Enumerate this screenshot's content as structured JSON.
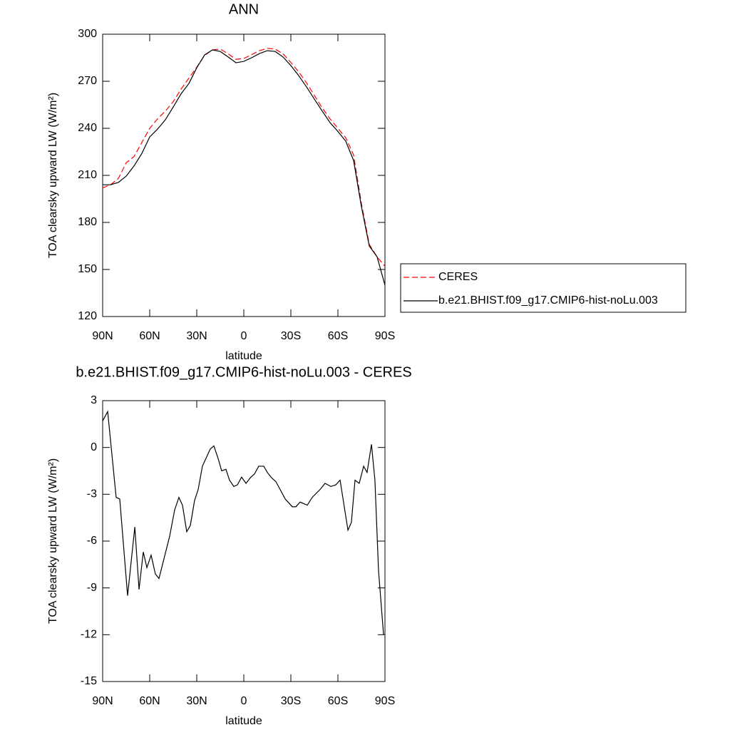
{
  "chart_data": [
    {
      "type": "line",
      "title": "ANN",
      "xlabel": "latitude",
      "ylabel": "TOA clearsky upward LW (W/m²)",
      "xlim": [
        90,
        -90
      ],
      "ylim": [
        120,
        300
      ],
      "xticks": [
        {
          "value": 90,
          "label": "90N"
        },
        {
          "value": 60,
          "label": "60N"
        },
        {
          "value": 30,
          "label": "30N"
        },
        0,
        {
          "value": -30,
          "label": "30S"
        },
        {
          "value": -60,
          "label": "60S"
        },
        {
          "value": -90,
          "label": "90S"
        }
      ],
      "yticks": [
        120,
        150,
        180,
        210,
        240,
        270,
        300
      ],
      "legend": "right",
      "x": [
        90,
        85,
        80,
        75,
        70,
        65,
        60,
        55,
        50,
        45,
        40,
        35,
        30,
        25,
        20,
        15,
        10,
        5,
        0,
        -5,
        -10,
        -15,
        -20,
        -25,
        -30,
        -35,
        -40,
        -45,
        -50,
        -55,
        -60,
        -65,
        -70,
        -75,
        -80,
        -85,
        -90
      ],
      "series": [
        {
          "name": "CERES",
          "color": "#ff0000",
          "style": "dashed",
          "values": [
            202,
            204,
            208,
            218,
            222,
            231,
            240,
            246,
            251,
            257,
            265,
            272,
            279,
            286.5,
            290,
            290.5,
            287.5,
            284,
            284.5,
            287,
            289.5,
            291,
            290.5,
            287.5,
            282,
            276,
            269,
            261,
            253,
            246,
            240,
            234,
            223,
            192,
            166,
            158,
            152
          ]
        },
        {
          "name": "b.e21.BHIST.f09_g17.CMIP6-hist-noLu.003",
          "color": "#000000",
          "style": "solid",
          "values": [
            204,
            204,
            205.5,
            209.5,
            216,
            224,
            234.5,
            239.5,
            245.5,
            253.6,
            262,
            268.6,
            278.6,
            286.8,
            290,
            289,
            285.5,
            281.8,
            282.7,
            285,
            287.7,
            289.5,
            289,
            285.5,
            280,
            273.6,
            266.4,
            258.6,
            251,
            243.6,
            238,
            231.8,
            219.5,
            190,
            165,
            158,
            140
          ]
        }
      ]
    },
    {
      "type": "line",
      "title": "b.e21.BHIST.f09_g17.CMIP6-hist-noLu.003 - CERES",
      "xlabel": "latitude",
      "ylabel": "TOA clearsky upward LW (W/m²)",
      "xlim": [
        90,
        -90
      ],
      "ylim": [
        -15,
        3
      ],
      "xticks": [
        {
          "value": 90,
          "label": "90N"
        },
        {
          "value": 60,
          "label": "60N"
        },
        {
          "value": 30,
          "label": "30N"
        },
        0,
        {
          "value": -30,
          "label": "30S"
        },
        {
          "value": -60,
          "label": "60S"
        },
        {
          "value": -90,
          "label": "90S"
        }
      ],
      "yticks": [
        -15,
        -12,
        -9,
        -6,
        -3,
        0,
        3
      ],
      "x": [
        90,
        86.8,
        81.4,
        79.1,
        74.1,
        69.5,
        66.8,
        64.1,
        61.8,
        59.1,
        56.4,
        54.1,
        47.3,
        44.1,
        41.4,
        39.1,
        36.4,
        34.1,
        31.4,
        29.1,
        26.4,
        21.4,
        19.1,
        16.4,
        14.1,
        11.4,
        9.1,
        6.4,
        4.1,
        1.4,
        -1.4,
        -4.5,
        -6.8,
        -9.5,
        -12.7,
        -15,
        -17.3,
        -20.5,
        -23.2,
        -26.4,
        -30.9,
        -33.2,
        -35.9,
        -40.5,
        -43.6,
        -48.6,
        -51.8,
        -55.5,
        -58.6,
        -61.4,
        -66.4,
        -68.6,
        -70.9,
        -73.6,
        -76.4,
        -78.6,
        -81.4,
        -83.6,
        -85.9,
        -89.1
      ],
      "series": [
        {
          "color": "#000000",
          "style": "solid",
          "values": [
            1.7,
            2.3,
            -3.2,
            -3.3,
            -9.5,
            -5.1,
            -9.1,
            -6.7,
            -7.7,
            -6.9,
            -8.1,
            -8.4,
            -5.7,
            -4.0,
            -3.2,
            -3.7,
            -5.4,
            -5.0,
            -3.4,
            -2.7,
            -1.2,
            -0.1,
            0.1,
            -0.7,
            -1.5,
            -1.4,
            -2.1,
            -2.5,
            -2.4,
            -1.9,
            -2.3,
            -1.9,
            -1.7,
            -1.2,
            -1.2,
            -1.6,
            -1.9,
            -2.2,
            -2.7,
            -3.3,
            -3.8,
            -3.8,
            -3.5,
            -3.7,
            -3.2,
            -2.7,
            -2.3,
            -2.5,
            -2.4,
            -2.1,
            -5.3,
            -4.8,
            -2.1,
            -2.3,
            -1.2,
            -1.6,
            0.2,
            -2.1,
            -7.9,
            -12.0
          ]
        }
      ]
    }
  ]
}
